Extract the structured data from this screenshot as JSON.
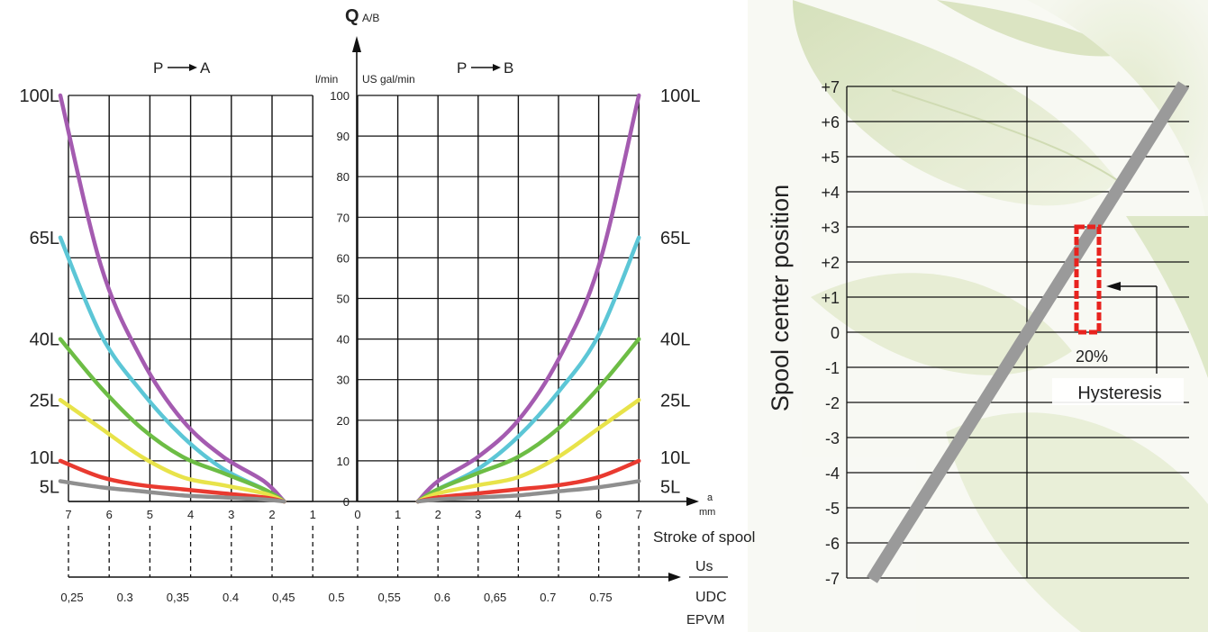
{
  "chart_data": [
    {
      "type": "line",
      "title": "Q",
      "title_sub": "A/B",
      "x_unit": "mm",
      "x_unit_letter": "a",
      "xlabel": "Stroke of spool",
      "ratio_label_top": "Us",
      "ratio_label_bottom": "UDC",
      "ratio_label_sub": "EPVM",
      "y_unit_metric": "l/min",
      "y_unit_us": "US gal/min",
      "ylim": [
        0,
        100
      ],
      "y_ticks": [
        "0",
        "10",
        "20",
        "30",
        "40",
        "50",
        "60",
        "70",
        "80",
        "90",
        "100"
      ],
      "left_panel": {
        "title_from": "P",
        "title_to": "A",
        "x_ticks": [
          "7",
          "6",
          "5",
          "4",
          "3",
          "2",
          "1"
        ],
        "ratio_ticks": [
          "0,25",
          "0.3",
          "0,35",
          "0.4",
          "0,45"
        ]
      },
      "right_panel": {
        "title_from": "P",
        "title_to": "B",
        "x_ticks": [
          "0",
          "1",
          "2",
          "3",
          "4",
          "5",
          "6",
          "7"
        ],
        "ratio_ticks": [
          "0.5",
          "0,55",
          "0.6",
          "0,65",
          "0.7",
          "0.75"
        ]
      },
      "x_points": [
        1.5,
        2,
        3,
        4,
        5,
        6,
        7
      ],
      "series": [
        {
          "name": "100L",
          "color": "#a45bb0",
          "values": [
            0,
            5,
            11,
            20,
            35,
            58,
            100
          ]
        },
        {
          "name": "65L",
          "color": "#5cc6d6",
          "values": [
            0,
            3,
            8,
            16,
            27,
            41,
            65
          ]
        },
        {
          "name": "40L",
          "color": "#6dbd45",
          "values": [
            0,
            3,
            7,
            11,
            18,
            28,
            40
          ]
        },
        {
          "name": "25L",
          "color": "#e8e34a",
          "values": [
            0,
            2,
            4,
            6,
            11,
            18,
            25
          ]
        },
        {
          "name": "10L",
          "color": "#e93a30",
          "values": [
            0,
            1,
            2,
            3,
            4,
            6,
            10
          ]
        },
        {
          "name": "5L",
          "color": "#8f8f8f",
          "values": [
            0,
            0.5,
            1,
            1.5,
            2.5,
            3.5,
            5
          ]
        }
      ]
    },
    {
      "type": "line",
      "ylabel": "Spool center position",
      "ylim": [
        -7,
        7
      ],
      "y_ticks": [
        "+7",
        "+6",
        "+5",
        "+4",
        "+3",
        "+2",
        "+1",
        "0",
        "-1",
        "-2",
        "-3",
        "-4",
        "-5",
        "-6",
        "-7"
      ],
      "grid": true,
      "band_label": "20%",
      "annotation": "Hysteresis",
      "line_color": "#9a9a9a",
      "band_color": "#e8231e"
    }
  ]
}
